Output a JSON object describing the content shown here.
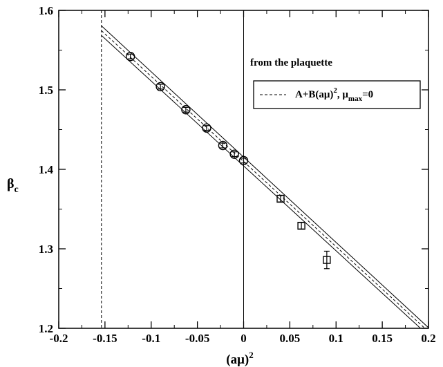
{
  "chart_data": {
    "type": "scatter",
    "xlabel": "(aμ)",
    "xlabel_sup": "2",
    "ylabel": "β",
    "ylabel_sub": "c",
    "xlim": [
      -0.2,
      0.2
    ],
    "ylim": [
      1.2,
      1.6
    ],
    "x_ticks": [
      "-0.2",
      "-0.15",
      "-0.1",
      "-0.05",
      "0",
      "0.05",
      "0.1",
      "0.15",
      "0.2"
    ],
    "y_ticks": [
      "1.2",
      "1.3",
      "1.4",
      "1.5",
      "1.6"
    ],
    "x_tick_values": [
      -0.2,
      -0.15,
      -0.1,
      -0.05,
      0,
      0.05,
      0.1,
      0.15,
      0.2
    ],
    "y_tick_values": [
      1.2,
      1.3,
      1.4,
      1.5,
      1.6
    ],
    "grid": false,
    "annotation": "from the plaquette",
    "legend_position": "top-right",
    "legend": {
      "label_main": "A+B(aμ)",
      "label_sup": "2",
      "label_sep": ",   μ",
      "label_sub": "max",
      "label_tail": "=0"
    },
    "reference_lines": [
      {
        "axis": "x",
        "value": -0.1538,
        "style": "dashed"
      },
      {
        "axis": "x",
        "value": 0,
        "style": "solid"
      }
    ],
    "fit": {
      "style": "dashed",
      "x": [
        -0.1538,
        0.2
      ],
      "y": [
        1.5745,
        1.1958
      ],
      "band_upper": [
        1.5805,
        1.2008
      ],
      "band_lower": [
        1.5685,
        1.1908
      ]
    },
    "series": [
      {
        "name": "circles",
        "marker": "circle",
        "x": [
          -0.1225,
          -0.09,
          -0.0625,
          -0.04,
          -0.0225,
          -0.01,
          0.0
        ],
        "y": [
          1.542,
          1.504,
          1.475,
          1.452,
          1.43,
          1.419,
          1.411
        ],
        "err": [
          0.003,
          0.003,
          0.003,
          0.003,
          0.003,
          0.003,
          0.003
        ]
      },
      {
        "name": "squares",
        "marker": "square",
        "x": [
          0.04,
          0.0625,
          0.09
        ],
        "y": [
          1.363,
          1.329,
          1.286
        ],
        "err": [
          0.004,
          0.004,
          0.011
        ]
      }
    ]
  }
}
